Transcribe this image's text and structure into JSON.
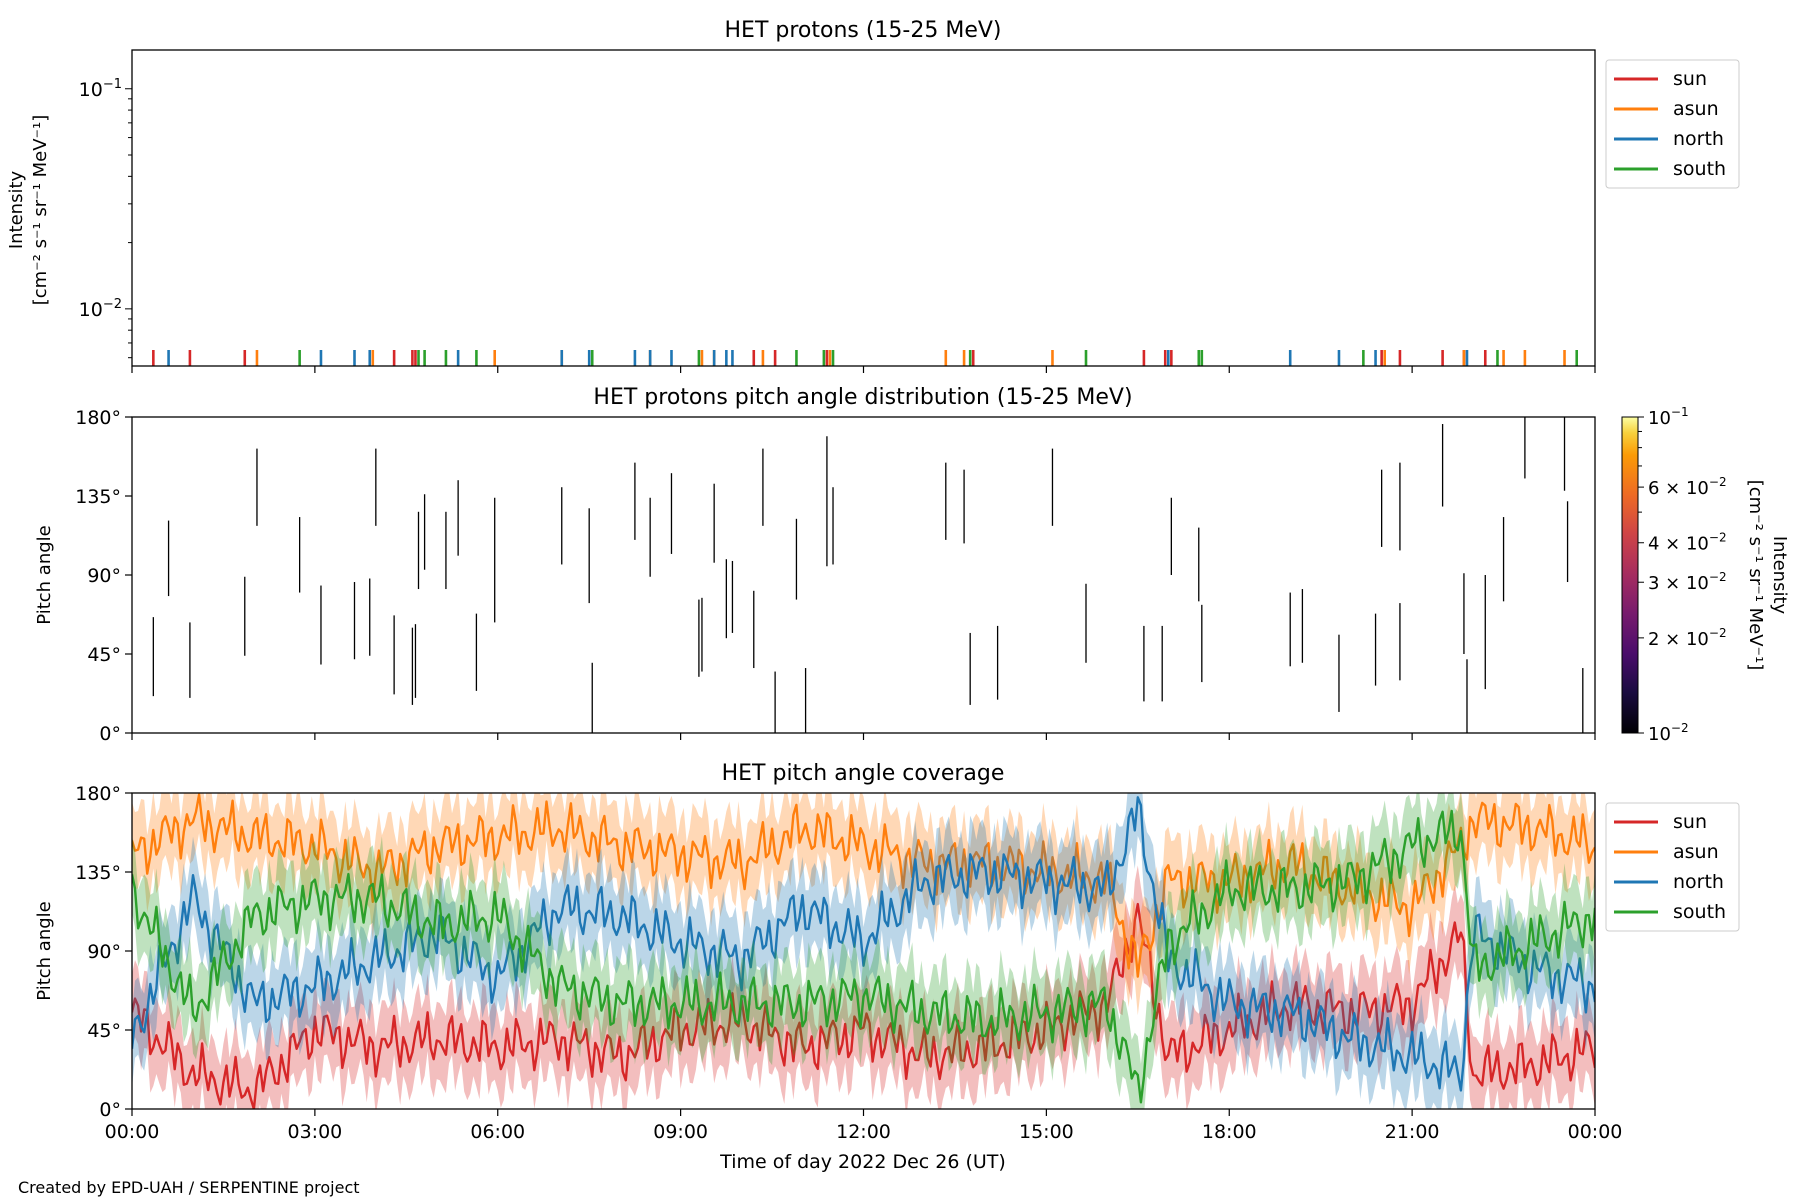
{
  "figure": {
    "credit": "Created by EPD-UAH / SERPENTINE project",
    "xlabel": "Time of day 2022 Dec 26 (UT)",
    "xticks": [
      "00:00",
      "03:00",
      "06:00",
      "09:00",
      "12:00",
      "15:00",
      "18:00",
      "21:00",
      "00:00"
    ]
  },
  "colors": {
    "sun": "#d62728",
    "asun": "#ff7f0e",
    "north": "#1f77b4",
    "south": "#2ca02c"
  },
  "chart_data": [
    {
      "type": "line",
      "title": "HET protons (15-25 MeV)",
      "ylabel_line1": "Intensity",
      "ylabel_line2": "[cm⁻² s⁻¹ sr⁻¹ MeV⁻¹]",
      "yscale": "log",
      "ylim": [
        0.0055,
        0.15
      ],
      "yticks": [
        {
          "value": 0.1,
          "base": "10",
          "exp": "−1"
        },
        {
          "value": 0.01,
          "base": "10",
          "exp": "−2"
        }
      ],
      "xlim_hours": [
        0,
        24
      ],
      "legend": {
        "placement": "outside-right",
        "entries": [
          "sun",
          "asun",
          "north",
          "south"
        ]
      },
      "series": [
        {
          "name": "sun",
          "spikes_hours": [
            0.35,
            0.95,
            1.85,
            4.3,
            4.6,
            4.65,
            10.2,
            10.55,
            11.4,
            13.8,
            16.6,
            16.95,
            17.05,
            20.5,
            20.8,
            21.5,
            21.85,
            22.2
          ]
        },
        {
          "name": "asun",
          "spikes_hours": [
            2.05,
            3.95,
            5.95,
            7.05,
            8.5,
            9.35,
            9.55,
            10.35,
            11.45,
            13.35,
            13.65,
            15.1,
            20.55,
            21.85,
            22.5,
            22.85,
            23.5
          ]
        },
        {
          "name": "north",
          "spikes_hours": [
            0.6,
            3.1,
            3.65,
            3.9,
            5.35,
            7.05,
            7.5,
            8.25,
            8.5,
            8.85,
            9.55,
            9.75,
            9.85,
            17.0,
            19.0,
            19.8,
            20.4,
            21.9
          ]
        },
        {
          "name": "south",
          "spikes_hours": [
            2.75,
            4.7,
            4.8,
            5.15,
            5.65,
            7.55,
            9.3,
            10.9,
            11.35,
            11.5,
            13.75,
            15.65,
            17.5,
            17.55,
            20.2,
            22.4,
            23.7
          ]
        }
      ]
    },
    {
      "type": "heatmap",
      "title": "HET protons pitch angle distribution (15-25 MeV)",
      "ylabel": "Pitch angle",
      "ylim": [
        0,
        180
      ],
      "yticks": [
        "0°",
        "45°",
        "90°",
        "135°",
        "180°"
      ],
      "colorbar": {
        "colormap": "inferno",
        "scale": "log",
        "range": [
          0.01,
          0.1
        ],
        "label_line1": "Intensity",
        "label_line2": "[cm⁻² s⁻¹ sr⁻¹ MeV⁻¹]",
        "ticks": [
          {
            "value": 0.1,
            "mant": "",
            "base": "10",
            "exp": "−1"
          },
          {
            "value": 0.06,
            "mant": "6 × ",
            "base": "10",
            "exp": "−2"
          },
          {
            "value": 0.04,
            "mant": "4 × ",
            "base": "10",
            "exp": "−2"
          },
          {
            "value": 0.03,
            "mant": "3 × ",
            "base": "10",
            "exp": "−2"
          },
          {
            "value": 0.02,
            "mant": "2 × ",
            "base": "10",
            "exp": "−2"
          },
          {
            "value": 0.01,
            "mant": "",
            "base": "10",
            "exp": "−2"
          }
        ]
      },
      "cells": [
        [
          0.35,
          21,
          66
        ],
        [
          0.6,
          78,
          121
        ],
        [
          0.95,
          20,
          63
        ],
        [
          1.85,
          44,
          89
        ],
        [
          2.05,
          118,
          162
        ],
        [
          2.75,
          80,
          123
        ],
        [
          3.1,
          39,
          84
        ],
        [
          3.65,
          42,
          86
        ],
        [
          3.9,
          44,
          88
        ],
        [
          4.0,
          118,
          162
        ],
        [
          4.3,
          22,
          67
        ],
        [
          4.6,
          16,
          60
        ],
        [
          4.65,
          20,
          62
        ],
        [
          4.7,
          82,
          126
        ],
        [
          4.8,
          93,
          136
        ],
        [
          5.15,
          82,
          126
        ],
        [
          5.35,
          101,
          144
        ],
        [
          5.65,
          24,
          68
        ],
        [
          5.95,
          63,
          134
        ],
        [
          7.05,
          96,
          140
        ],
        [
          7.5,
          74,
          128
        ],
        [
          7.55,
          0,
          40
        ],
        [
          8.25,
          110,
          154
        ],
        [
          8.5,
          89,
          134
        ],
        [
          8.85,
          102,
          148
        ],
        [
          9.3,
          32,
          76
        ],
        [
          9.35,
          35,
          77
        ],
        [
          9.55,
          97,
          142
        ],
        [
          9.75,
          54,
          99
        ],
        [
          9.85,
          57,
          98
        ],
        [
          10.2,
          37,
          81
        ],
        [
          10.35,
          118,
          162
        ],
        [
          10.55,
          0,
          35
        ],
        [
          10.9,
          76,
          122
        ],
        [
          11.05,
          0,
          37
        ],
        [
          11.4,
          95,
          169
        ],
        [
          11.5,
          96,
          140
        ],
        [
          13.35,
          110,
          154
        ],
        [
          13.65,
          108,
          150
        ],
        [
          13.75,
          16,
          57
        ],
        [
          14.2,
          19,
          61
        ],
        [
          15.1,
          118,
          162
        ],
        [
          15.65,
          40,
          85
        ],
        [
          16.6,
          18,
          61
        ],
        [
          16.9,
          18,
          61
        ],
        [
          17.05,
          90,
          134
        ],
        [
          17.5,
          75,
          117
        ],
        [
          17.55,
          29,
          73
        ],
        [
          19.0,
          38,
          80
        ],
        [
          19.2,
          40,
          82
        ],
        [
          19.8,
          12,
          56
        ],
        [
          20.4,
          27,
          68
        ],
        [
          20.5,
          106,
          150
        ],
        [
          20.8,
          104,
          154
        ],
        [
          20.8,
          30,
          74
        ],
        [
          21.5,
          129,
          176
        ],
        [
          21.85,
          45,
          91
        ],
        [
          21.9,
          0,
          42
        ],
        [
          22.2,
          25,
          90
        ],
        [
          22.5,
          75,
          123
        ],
        [
          22.85,
          145,
          180
        ],
        [
          23.5,
          138,
          180
        ],
        [
          23.55,
          86,
          132
        ],
        [
          23.8,
          0,
          37
        ]
      ]
    },
    {
      "type": "area",
      "title": "HET pitch angle coverage",
      "ylabel": "Pitch angle",
      "ylim": [
        0,
        180
      ],
      "yticks": [
        "0°",
        "45°",
        "90°",
        "135°",
        "180°"
      ],
      "xlim_hours": [
        0,
        24
      ],
      "legend": {
        "placement": "outside-right",
        "entries": [
          "sun",
          "asun",
          "north",
          "south"
        ]
      },
      "band_halfwidth_deg": 22,
      "series": [
        {
          "name": "sun",
          "x_hours": [
            0,
            1,
            2,
            3,
            4,
            5,
            6,
            7,
            8,
            9,
            10,
            11,
            12,
            13,
            14,
            15,
            16,
            16.5,
            17,
            18,
            19,
            20,
            21,
            21.8,
            22,
            23,
            24
          ],
          "values": [
            55,
            20,
            10,
            45,
            35,
            40,
            35,
            40,
            30,
            45,
            50,
            35,
            45,
            30,
            35,
            45,
            60,
            110,
            30,
            45,
            60,
            55,
            60,
            100,
            20,
            25,
            35
          ]
        },
        {
          "name": "asun",
          "x_hours": [
            0,
            1,
            2,
            3,
            4,
            5,
            6,
            7,
            8,
            9,
            10,
            11,
            12,
            13,
            14,
            15,
            16,
            16.5,
            17,
            18,
            19,
            20,
            21,
            21.8,
            22,
            23,
            24
          ],
          "values": [
            145,
            165,
            155,
            150,
            135,
            150,
            155,
            160,
            150,
            145,
            140,
            160,
            150,
            140,
            140,
            135,
            130,
            80,
            130,
            130,
            140,
            125,
            115,
            150,
            165,
            160,
            150
          ]
        },
        {
          "name": "north",
          "x_hours": [
            0,
            1,
            2,
            3,
            4,
            5,
            6,
            7,
            8,
            9,
            10,
            11,
            12,
            13,
            14,
            15,
            16,
            16.5,
            17,
            18,
            19,
            20,
            21,
            21.8,
            22,
            23,
            24
          ],
          "values": [
            40,
            120,
            60,
            70,
            85,
            100,
            75,
            115,
            110,
            95,
            85,
            115,
            95,
            130,
            135,
            130,
            125,
            170,
            85,
            60,
            55,
            40,
            30,
            20,
            100,
            80,
            70
          ]
        },
        {
          "name": "south",
          "x_hours": [
            0,
            1,
            2,
            3,
            4,
            5,
            6,
            7,
            8,
            9,
            10,
            11,
            12,
            13,
            14,
            15,
            16,
            16.5,
            17,
            18,
            19,
            20,
            21,
            21.8,
            22,
            23,
            24
          ],
          "values": [
            125,
            55,
            110,
            120,
            120,
            105,
            110,
            70,
            60,
            60,
            60,
            60,
            65,
            55,
            50,
            55,
            60,
            10,
            95,
            125,
            125,
            130,
            150,
            160,
            80,
            95,
            110
          ]
        }
      ]
    }
  ]
}
